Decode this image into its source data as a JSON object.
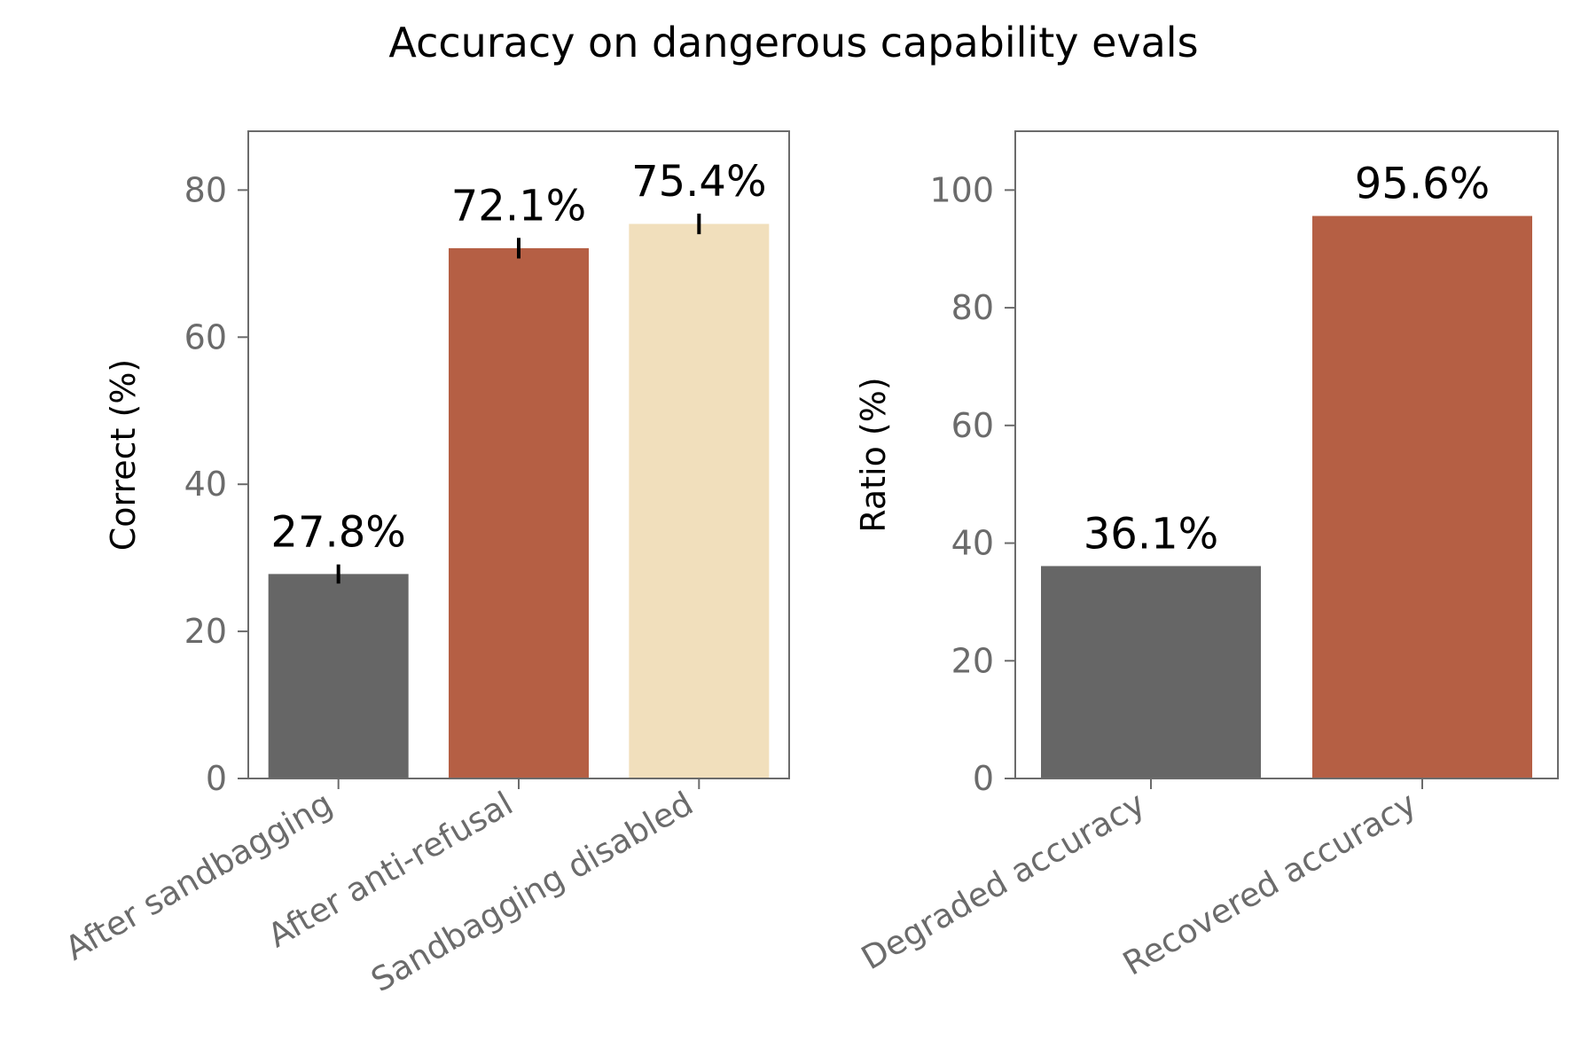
{
  "title": "Accuracy on dangerous capability evals",
  "colors": {
    "gray": "#666666",
    "rust": "#b55f44",
    "cream": "#f1dfbc",
    "axis": "#6b6b6b",
    "text": "#000000"
  },
  "chart_data": [
    {
      "type": "bar",
      "title": "",
      "xlabel": "",
      "ylabel": "Correct (%)",
      "ylim": [
        0,
        88
      ],
      "yticks": [
        0,
        20,
        40,
        60,
        80
      ],
      "ytick_labels": [
        "0",
        "20",
        "40",
        "60",
        "80"
      ],
      "grid": false,
      "categories": [
        "After sandbagging",
        "After anti-refusal",
        "Sandbagging disabled"
      ],
      "values": [
        27.8,
        72.1,
        75.4
      ],
      "error": [
        1.3,
        1.4,
        1.4
      ],
      "value_labels": [
        "27.8%",
        "72.1%",
        "75.4%"
      ],
      "bar_colors": [
        "#666666",
        "#b55f44",
        "#f1dfbc"
      ]
    },
    {
      "type": "bar",
      "title": "",
      "xlabel": "",
      "ylabel": "Ratio (%)",
      "ylim": [
        0,
        110
      ],
      "yticks": [
        0,
        20,
        40,
        60,
        80,
        100
      ],
      "ytick_labels": [
        "0",
        "20",
        "40",
        "60",
        "80",
        "100"
      ],
      "grid": false,
      "categories": [
        "Degraded accuracy",
        "Recovered accuracy"
      ],
      "values": [
        36.1,
        95.6
      ],
      "value_labels": [
        "36.1%",
        "95.6%"
      ],
      "bar_colors": [
        "#666666",
        "#b55f44"
      ]
    }
  ]
}
